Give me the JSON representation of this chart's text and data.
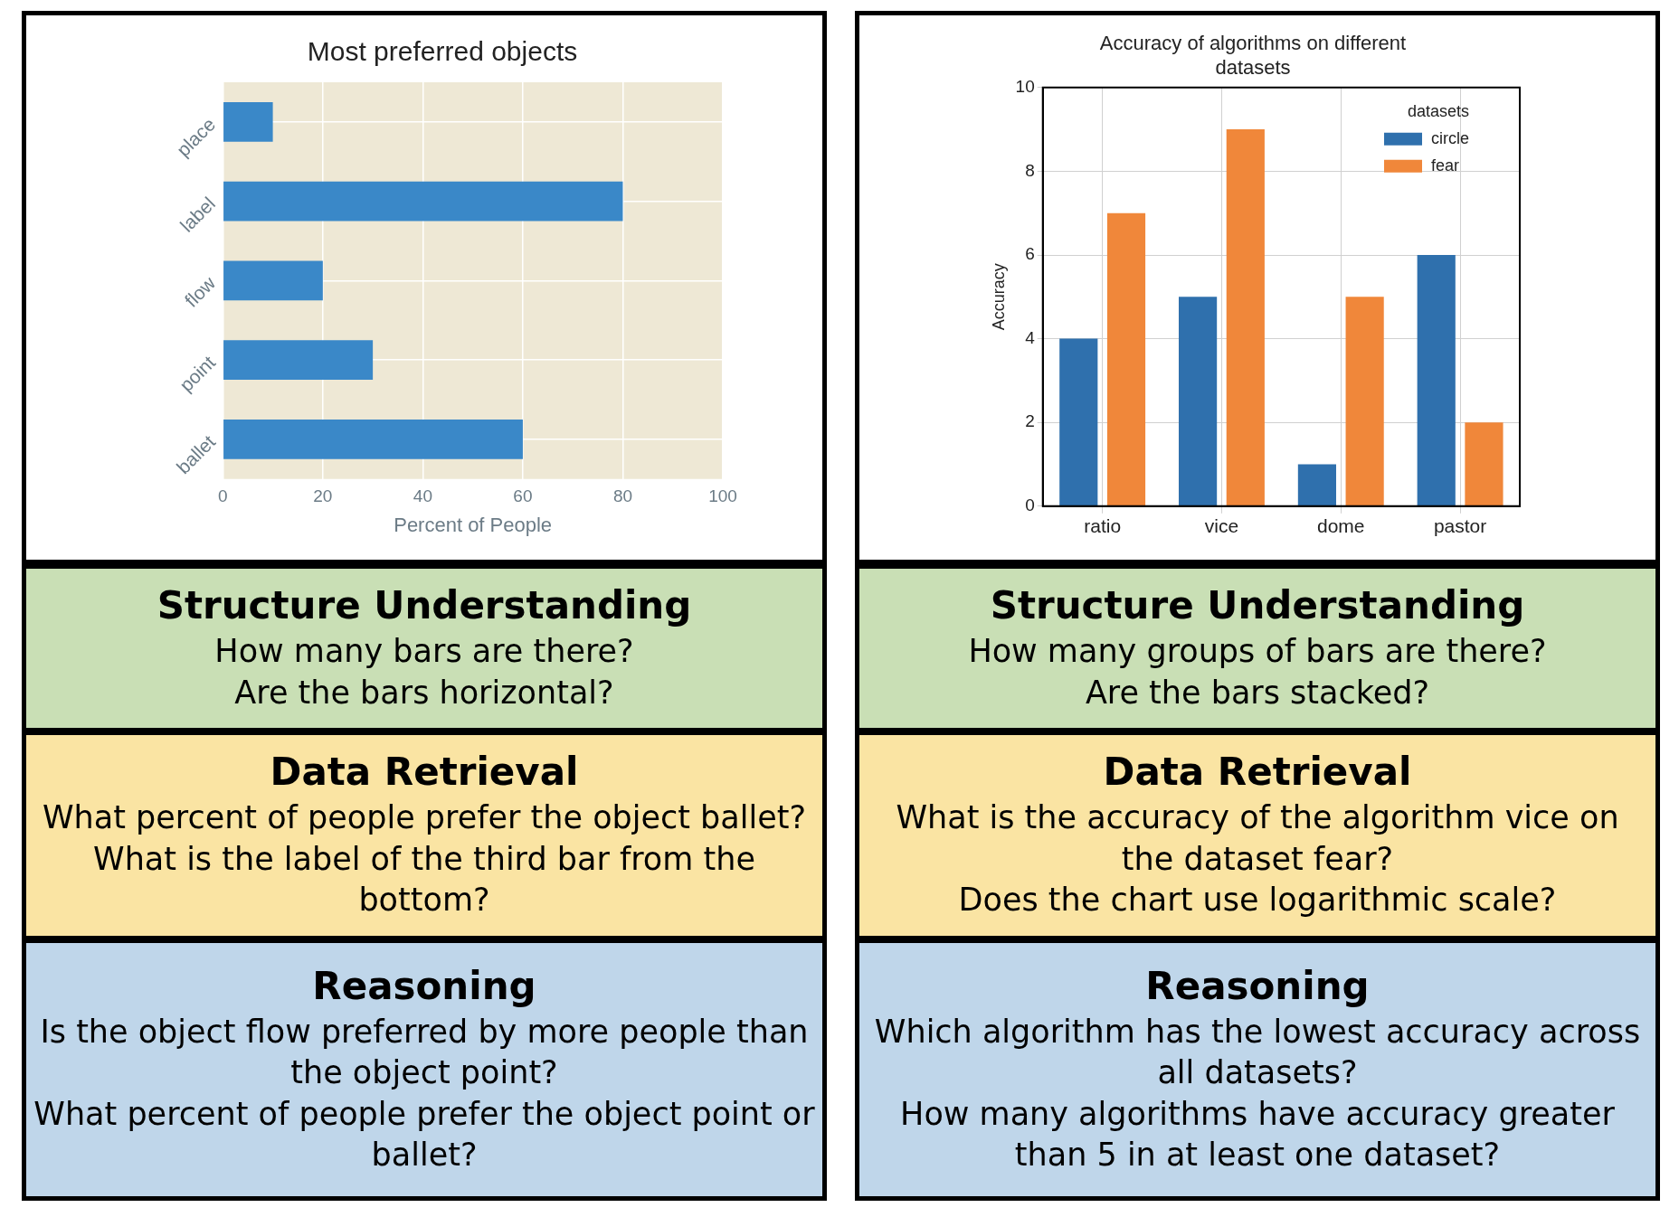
{
  "chart_data": [
    {
      "type": "bar",
      "orientation": "horizontal",
      "title": "Most preferred objects",
      "xlabel": "Percent of People",
      "categories": [
        "place",
        "label",
        "flow",
        "point",
        "ballet"
      ],
      "values": [
        10,
        80,
        20,
        30,
        60
      ],
      "color": "#3a88c8",
      "xlim": [
        0,
        100
      ],
      "xticks": [
        0,
        20,
        40,
        60,
        80,
        100
      ],
      "grid": true
    },
    {
      "type": "bar",
      "title": "Accuracy of algorithms on different datasets",
      "ylabel": "Accuracy",
      "legend_title": "datasets",
      "legend": "top right",
      "categories": [
        "ratio",
        "vice",
        "dome",
        "pastor"
      ],
      "series": [
        {
          "name": "circle",
          "color": "#2f70ad",
          "values": [
            4,
            5,
            1,
            6
          ]
        },
        {
          "name": "fear",
          "color": "#f0873a",
          "values": [
            7,
            9,
            5,
            2
          ]
        }
      ],
      "ylim": [
        0,
        10
      ],
      "yticks": [
        0,
        2,
        4,
        6,
        8,
        10
      ],
      "grid": true
    },
    {
      "type": "other",
      "title": "Structure Understanding",
      "annotations": [
        "How many bars are there?",
        "Are the bars horizontal?"
      ]
    },
    {
      "type": "other",
      "title": "Structure Understanding",
      "annotations": [
        "How many groups of bars are there?",
        "Are the bars stacked?"
      ]
    },
    {
      "type": "other",
      "title": "Data Retrieval",
      "annotations": [
        "What percent of people prefer the object ballet?",
        "What is the label of the third bar from the bottom?"
      ]
    },
    {
      "type": "other",
      "title": "Data Retrieval",
      "annotations": [
        "What is the accuracy of the algorithm vice on the dataset fear?",
        "Does the chart use logarithmic scale?"
      ]
    },
    {
      "type": "other",
      "title": "Reasoning",
      "annotations": [
        "Is the object flow preferred by more people than the object point?",
        "What percent of people prefer the object point or ballet?"
      ]
    },
    {
      "type": "other",
      "title": "Reasoning",
      "annotations": [
        "Which algorithm has the lowest accuracy across all datasets?",
        "How many algorithms have accuracy greater than 5 in at least one dataset?"
      ]
    }
  ]
}
